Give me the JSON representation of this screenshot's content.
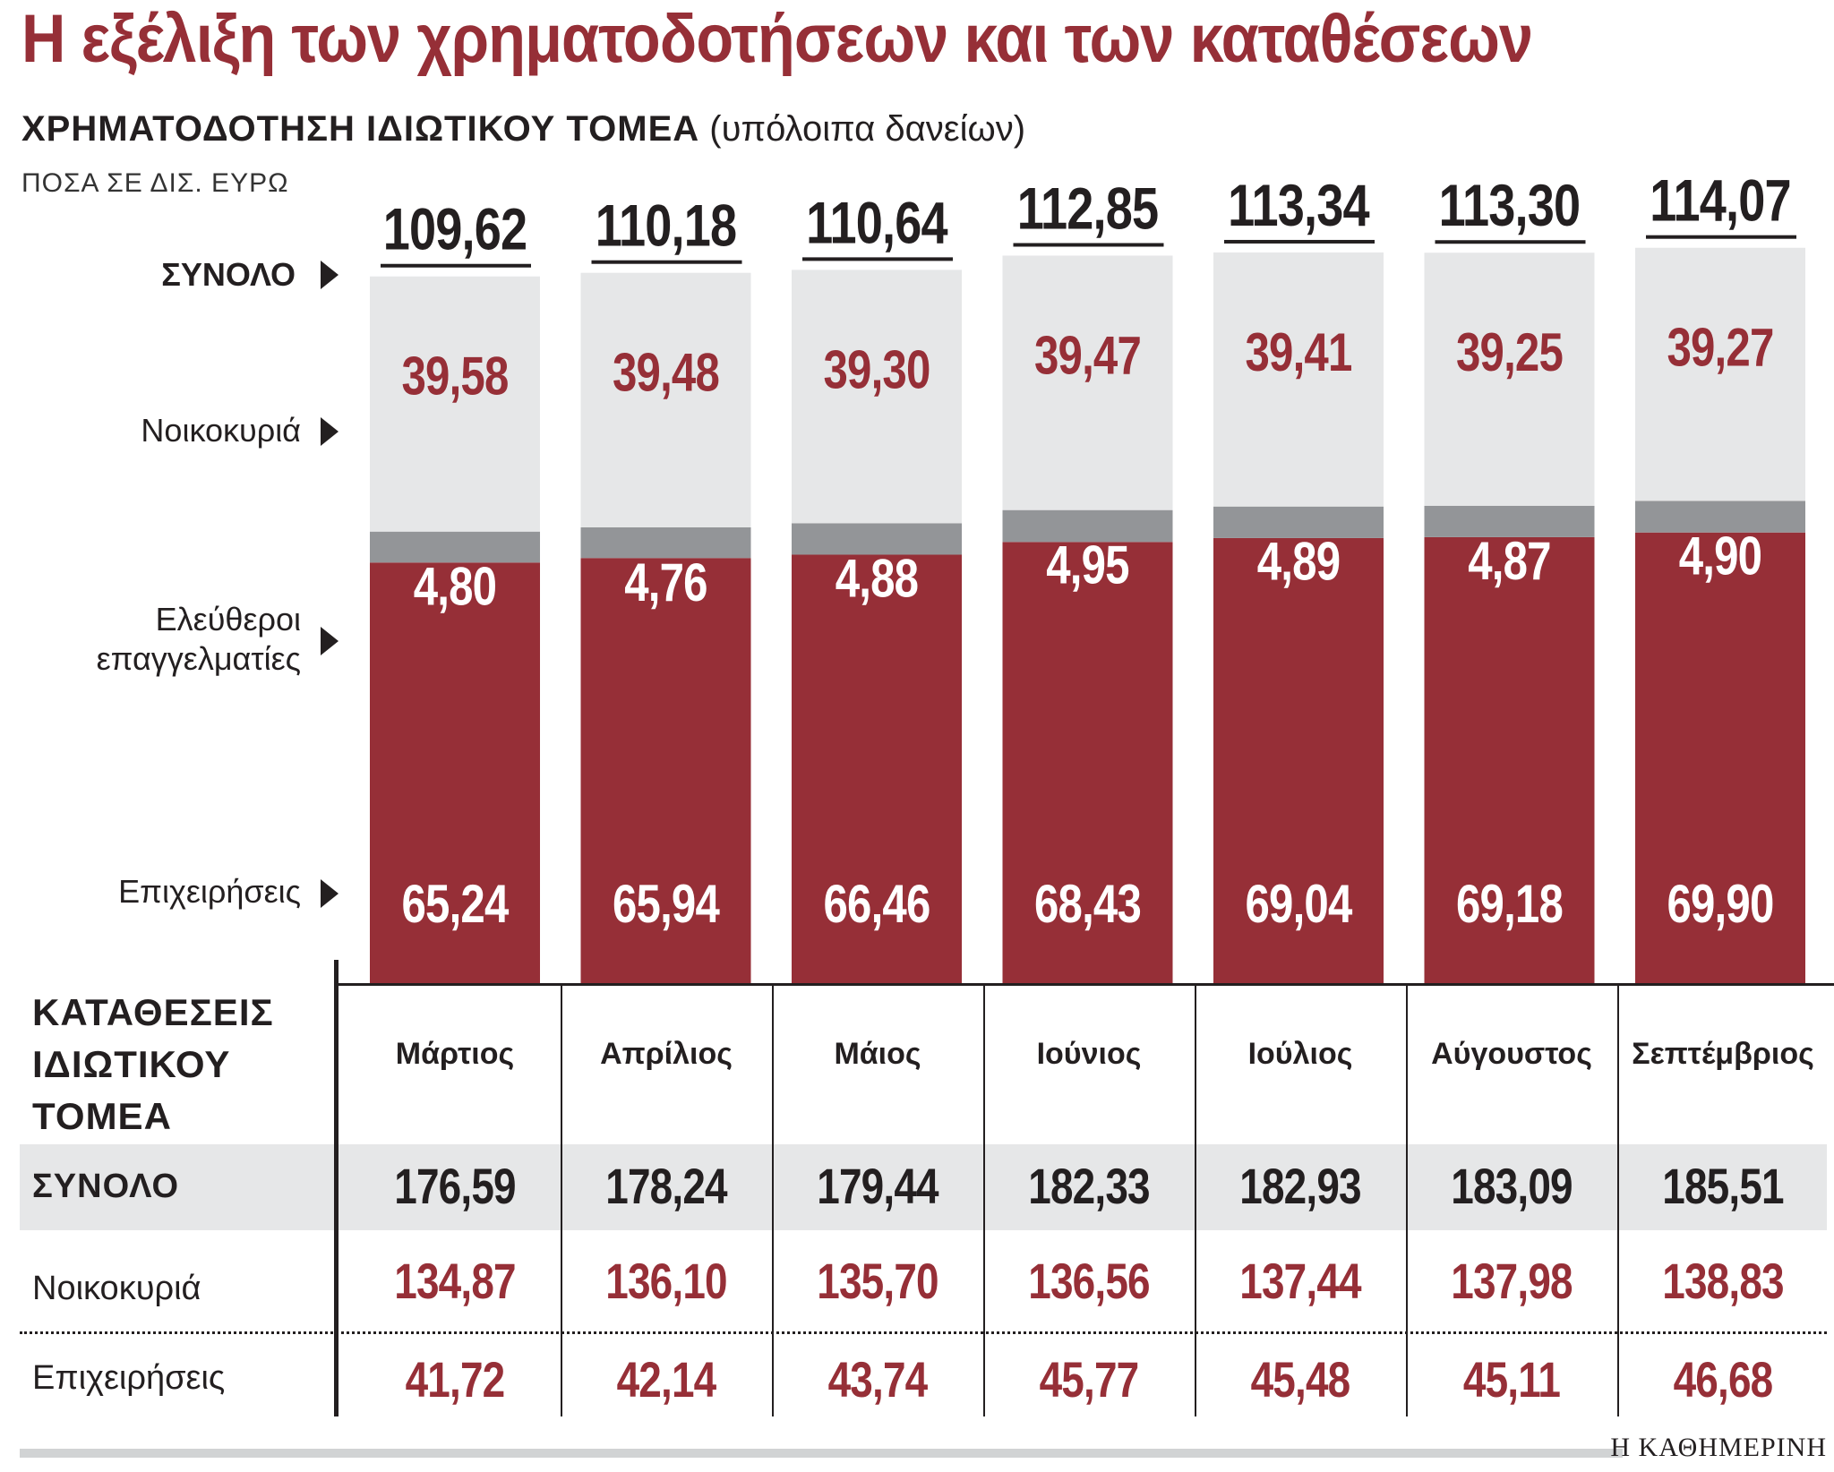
{
  "title": "Η εξέλιξη των χρηματοδοτήσεων και των καταθέσεων",
  "subtitle_bold": "ΧΡΗΜΑΤΟΔΟΤΗΣΗ ΙΔΙΩΤΙΚΟΥ ΤΟΜΕΑ",
  "subtitle_rest": "(υπόλοιπα δανείων)",
  "unit": "ΠΟΣΑ ΣΕ ΔΙΣ. ΕΥΡΩ",
  "row_labels": {
    "total": "ΣΥΝΟΛΟ",
    "households": "Νοικοκυριά",
    "freelancers_1": "Ελεύθεροι",
    "freelancers_2": "επαγγελματίες",
    "businesses": "Επιχειρήσεις"
  },
  "colors": {
    "businesses": "#962f37",
    "freelancers": "#939598",
    "households": "#e6e7e8",
    "accent": "#962f37",
    "text": "#231f20"
  },
  "chart_data": {
    "type": "bar",
    "stacked": true,
    "categories": [
      "Μάρτιος",
      "Απρίλιος",
      "Μάιος",
      "Ιούνιος",
      "Ιούλιος",
      "Αύγουστος",
      "Σεπτέμβριος"
    ],
    "series": [
      {
        "name": "Επιχειρήσεις",
        "values": [
          65.24,
          65.94,
          66.46,
          68.43,
          69.04,
          69.18,
          69.9
        ],
        "labels": [
          "65,24",
          "65,94",
          "66,46",
          "68,43",
          "69,04",
          "69,18",
          "69,90"
        ]
      },
      {
        "name": "Ελεύθεροι επαγγελματίες",
        "values": [
          4.8,
          4.76,
          4.88,
          4.95,
          4.89,
          4.87,
          4.9
        ],
        "labels": [
          "4,80",
          "4,76",
          "4,88",
          "4,95",
          "4,89",
          "4,87",
          "4,90"
        ]
      },
      {
        "name": "Νοικοκυριά",
        "values": [
          39.58,
          39.48,
          39.3,
          39.47,
          39.41,
          39.25,
          39.27
        ],
        "labels": [
          "39,58",
          "39,48",
          "39,30",
          "39,47",
          "39,41",
          "39,25",
          "39,27"
        ]
      }
    ],
    "totals": [
      109.62,
      110.18,
      110.64,
      112.85,
      113.34,
      113.3,
      114.07
    ],
    "total_labels": [
      "109,62",
      "110,18",
      "110,64",
      "112,85",
      "113,34",
      "113,30",
      "114,07"
    ],
    "title": "ΧΡΗΜΑΤΟΔΟΤΗΣΗ ΙΔΙΩΤΙΚΟΥ ΤΟΜΕΑ (υπόλοιπα δανείων)",
    "ylabel": "ΠΟΣΑ ΣΕ ΔΙΣ. ΕΥΡΩ",
    "ylim": [
      0,
      114.07
    ],
    "grid": false
  },
  "deposits": {
    "heading_1": "ΚΑΤΑΘΕΣΕΙΣ",
    "heading_2": "ΙΔΙΩΤΙΚΟΥ",
    "heading_3": "ΤΟΜΕΑ",
    "row_labels": {
      "total": "ΣΥΝΟΛΟ",
      "households": "Νοικοκυριά",
      "businesses": "Επιχειρήσεις"
    },
    "months": [
      "Μάρτιος",
      "Απρίλιος",
      "Μάιος",
      "Ιούνιος",
      "Ιούλιος",
      "Αύγουστος",
      "Σεπτέμβριος"
    ],
    "total": [
      "176,59",
      "178,24",
      "179,44",
      "182,33",
      "182,93",
      "183,09",
      "185,51"
    ],
    "households": [
      "134,87",
      "136,10",
      "135,70",
      "136,56",
      "137,44",
      "137,98",
      "138,83"
    ],
    "businesses": [
      "41,72",
      "42,14",
      "43,74",
      "45,77",
      "45,48",
      "45,11",
      "46,68"
    ]
  },
  "source": "Η ΚΑΘΗΜΕΡΙΝΗ"
}
